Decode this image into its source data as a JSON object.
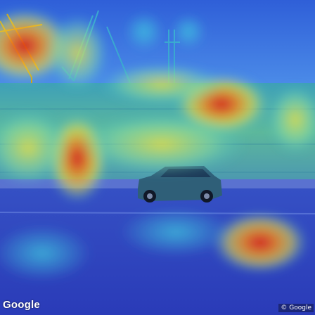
{
  "watermark": {
    "logo_text": "Google"
  },
  "copyright": {
    "text": "© Google"
  },
  "overlay": {
    "type": "attention-heatmap",
    "colormap": [
      "#1f2aa8",
      "#2e6be0",
      "#33c0e0",
      "#8fe0a0",
      "#f0e040",
      "#f09030",
      "#d82020"
    ]
  }
}
